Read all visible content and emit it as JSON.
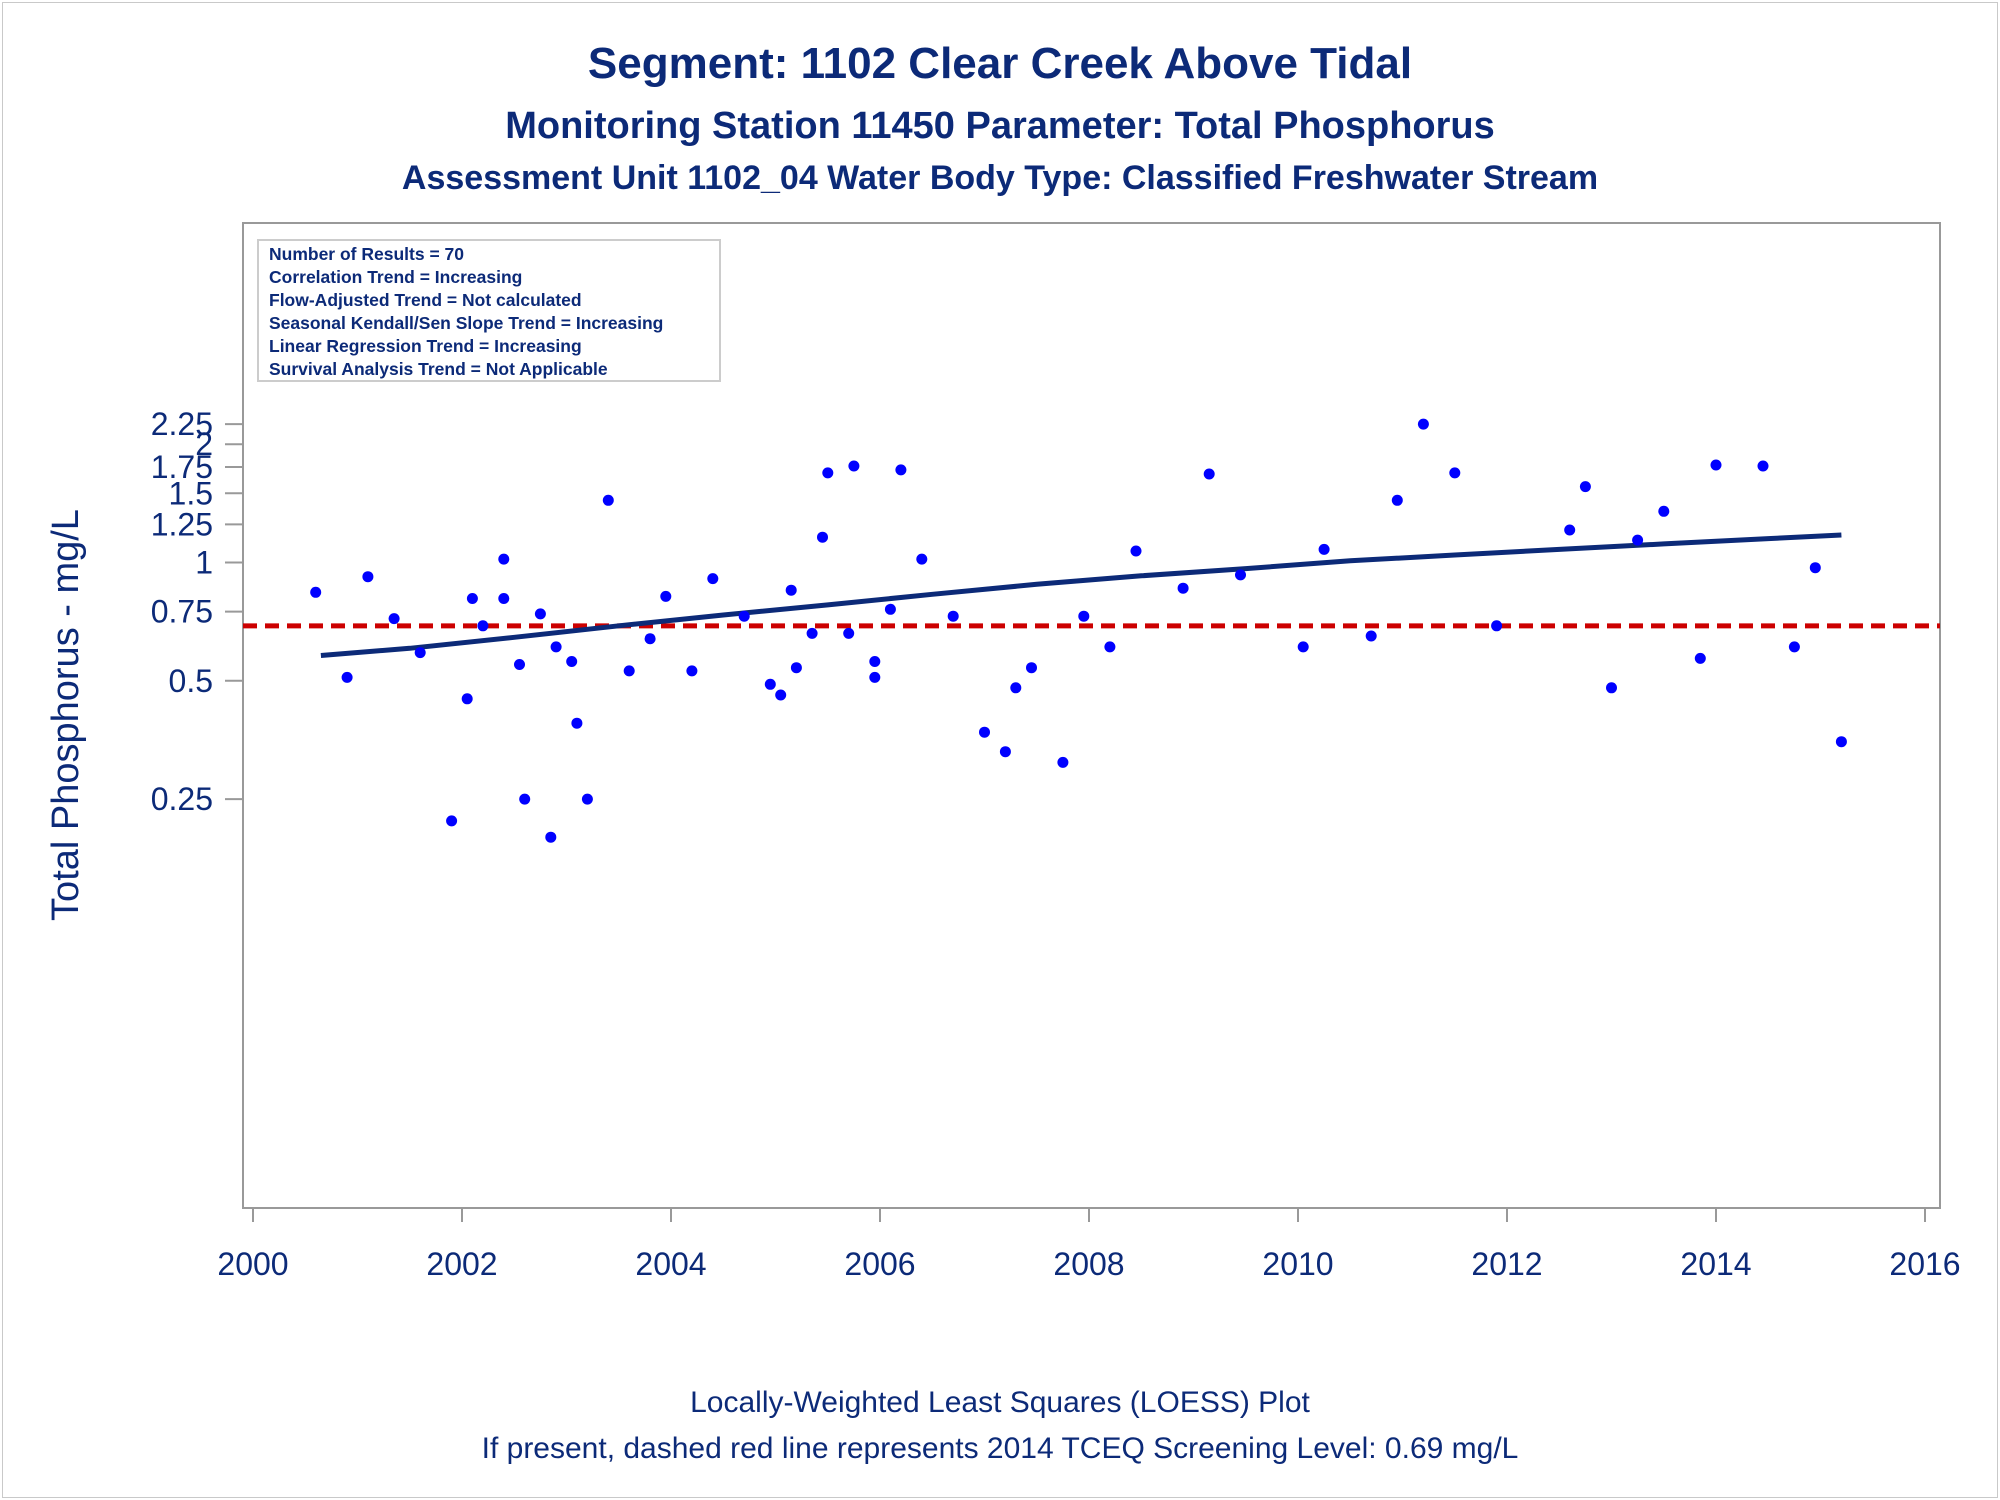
{
  "titles": {
    "line1": "Segment: 1102  Clear Creek Above Tidal",
    "line2": "Monitoring Station 11450 Parameter: Total Phosphorus",
    "line3": "Assessment Unit 1102_04   Water Body Type: Classified Freshwater Stream"
  },
  "stats_box": [
    "Number of Results = 70",
    "Correlation Trend = Increasing",
    "Flow-Adjusted Trend = Not calculated",
    "Seasonal Kendall/Sen Slope Trend = Increasing",
    "Linear Regression Trend = Increasing",
    "Survival Analysis Trend = Not Applicable"
  ],
  "footnotes": {
    "line1": "Locally-Weighted Least Squares (LOESS) Plot",
    "line2": "If present, dashed red line represents 2014 TCEQ Screening Level: 0.69 mg/L"
  },
  "colors": {
    "text": "#0c2a78",
    "points": "#0000ff",
    "loess": "#0c2a78",
    "screening": "#cc0000",
    "axis": "#999999"
  },
  "chart_data": {
    "type": "scatter",
    "ylabel": "Total Phosphorus - mg/L",
    "xlabel": "",
    "y_scale": "log",
    "xlim": [
      2000,
      2016
    ],
    "ylim": [
      0.2,
      2.25
    ],
    "x_ticks": [
      "2000",
      "2002",
      "2004",
      "2006",
      "2008",
      "2010",
      "2012",
      "2014",
      "2016"
    ],
    "y_ticks": [
      "0.25",
      "0.5",
      "0.75",
      "1",
      "1.25",
      "1.5",
      "1.75",
      "2",
      "2.25"
    ],
    "grid": false,
    "legend_position": "top-left",
    "screening_level": 0.69,
    "points": [
      {
        "x": 2000.6,
        "y": 0.84
      },
      {
        "x": 2000.9,
        "y": 0.51
      },
      {
        "x": 2001.1,
        "y": 0.92
      },
      {
        "x": 2001.35,
        "y": 0.72
      },
      {
        "x": 2001.6,
        "y": 0.59
      },
      {
        "x": 2001.9,
        "y": 0.22
      },
      {
        "x": 2002.05,
        "y": 0.45
      },
      {
        "x": 2002.1,
        "y": 0.81
      },
      {
        "x": 2002.2,
        "y": 0.69
      },
      {
        "x": 2002.4,
        "y": 1.02
      },
      {
        "x": 2002.4,
        "y": 0.81
      },
      {
        "x": 2002.55,
        "y": 0.55
      },
      {
        "x": 2002.6,
        "y": 0.25
      },
      {
        "x": 2002.75,
        "y": 0.74
      },
      {
        "x": 2002.85,
        "y": 0.2
      },
      {
        "x": 2002.9,
        "y": 0.61
      },
      {
        "x": 2003.05,
        "y": 0.56
      },
      {
        "x": 2003.1,
        "y": 0.39
      },
      {
        "x": 2003.2,
        "y": 0.25
      },
      {
        "x": 2003.4,
        "y": 1.44
      },
      {
        "x": 2003.6,
        "y": 0.53
      },
      {
        "x": 2003.8,
        "y": 0.64
      },
      {
        "x": 2003.95,
        "y": 0.82
      },
      {
        "x": 2004.2,
        "y": 0.53
      },
      {
        "x": 2004.4,
        "y": 0.91
      },
      {
        "x": 2004.7,
        "y": 0.73
      },
      {
        "x": 2004.95,
        "y": 0.49
      },
      {
        "x": 2005.05,
        "y": 0.46
      },
      {
        "x": 2005.15,
        "y": 0.85
      },
      {
        "x": 2005.2,
        "y": 0.54
      },
      {
        "x": 2005.35,
        "y": 0.66
      },
      {
        "x": 2005.45,
        "y": 1.16
      },
      {
        "x": 2005.5,
        "y": 1.69
      },
      {
        "x": 2005.7,
        "y": 0.66
      },
      {
        "x": 2005.75,
        "y": 1.76
      },
      {
        "x": 2005.95,
        "y": 0.56
      },
      {
        "x": 2005.95,
        "y": 0.51
      },
      {
        "x": 2006.1,
        "y": 0.76
      },
      {
        "x": 2006.2,
        "y": 1.72
      },
      {
        "x": 2006.4,
        "y": 1.02
      },
      {
        "x": 2006.7,
        "y": 0.73
      },
      {
        "x": 2007.0,
        "y": 0.37
      },
      {
        "x": 2007.2,
        "y": 0.33
      },
      {
        "x": 2007.3,
        "y": 0.48
      },
      {
        "x": 2007.45,
        "y": 0.54
      },
      {
        "x": 2007.75,
        "y": 0.31
      },
      {
        "x": 2007.95,
        "y": 0.73
      },
      {
        "x": 2008.2,
        "y": 0.61
      },
      {
        "x": 2008.45,
        "y": 1.07
      },
      {
        "x": 2008.9,
        "y": 0.86
      },
      {
        "x": 2009.15,
        "y": 1.68
      },
      {
        "x": 2009.45,
        "y": 0.93
      },
      {
        "x": 2010.05,
        "y": 0.61
      },
      {
        "x": 2010.25,
        "y": 1.08
      },
      {
        "x": 2010.7,
        "y": 0.65
      },
      {
        "x": 2010.95,
        "y": 1.44
      },
      {
        "x": 2011.2,
        "y": 2.25
      },
      {
        "x": 2011.5,
        "y": 1.69
      },
      {
        "x": 2011.9,
        "y": 0.69
      },
      {
        "x": 2012.6,
        "y": 1.21
      },
      {
        "x": 2012.75,
        "y": 1.56
      },
      {
        "x": 2013.0,
        "y": 0.48
      },
      {
        "x": 2013.25,
        "y": 1.14
      },
      {
        "x": 2013.5,
        "y": 1.35
      },
      {
        "x": 2013.85,
        "y": 0.57
      },
      {
        "x": 2014.0,
        "y": 1.77
      },
      {
        "x": 2014.45,
        "y": 1.76
      },
      {
        "x": 2014.75,
        "y": 0.61
      },
      {
        "x": 2014.95,
        "y": 0.97
      },
      {
        "x": 2015.2,
        "y": 0.35
      }
    ],
    "loess": [
      {
        "x": 2000.65,
        "y": 0.58
      },
      {
        "x": 2001.5,
        "y": 0.605
      },
      {
        "x": 2002.5,
        "y": 0.645
      },
      {
        "x": 2003.5,
        "y": 0.69
      },
      {
        "x": 2004.5,
        "y": 0.735
      },
      {
        "x": 2005.5,
        "y": 0.78
      },
      {
        "x": 2006.5,
        "y": 0.83
      },
      {
        "x": 2007.5,
        "y": 0.88
      },
      {
        "x": 2008.5,
        "y": 0.925
      },
      {
        "x": 2009.5,
        "y": 0.965
      },
      {
        "x": 2010.5,
        "y": 1.01
      },
      {
        "x": 2011.5,
        "y": 1.045
      },
      {
        "x": 2012.5,
        "y": 1.08
      },
      {
        "x": 2013.5,
        "y": 1.115
      },
      {
        "x": 2014.5,
        "y": 1.15
      },
      {
        "x": 2015.2,
        "y": 1.175
      }
    ]
  }
}
